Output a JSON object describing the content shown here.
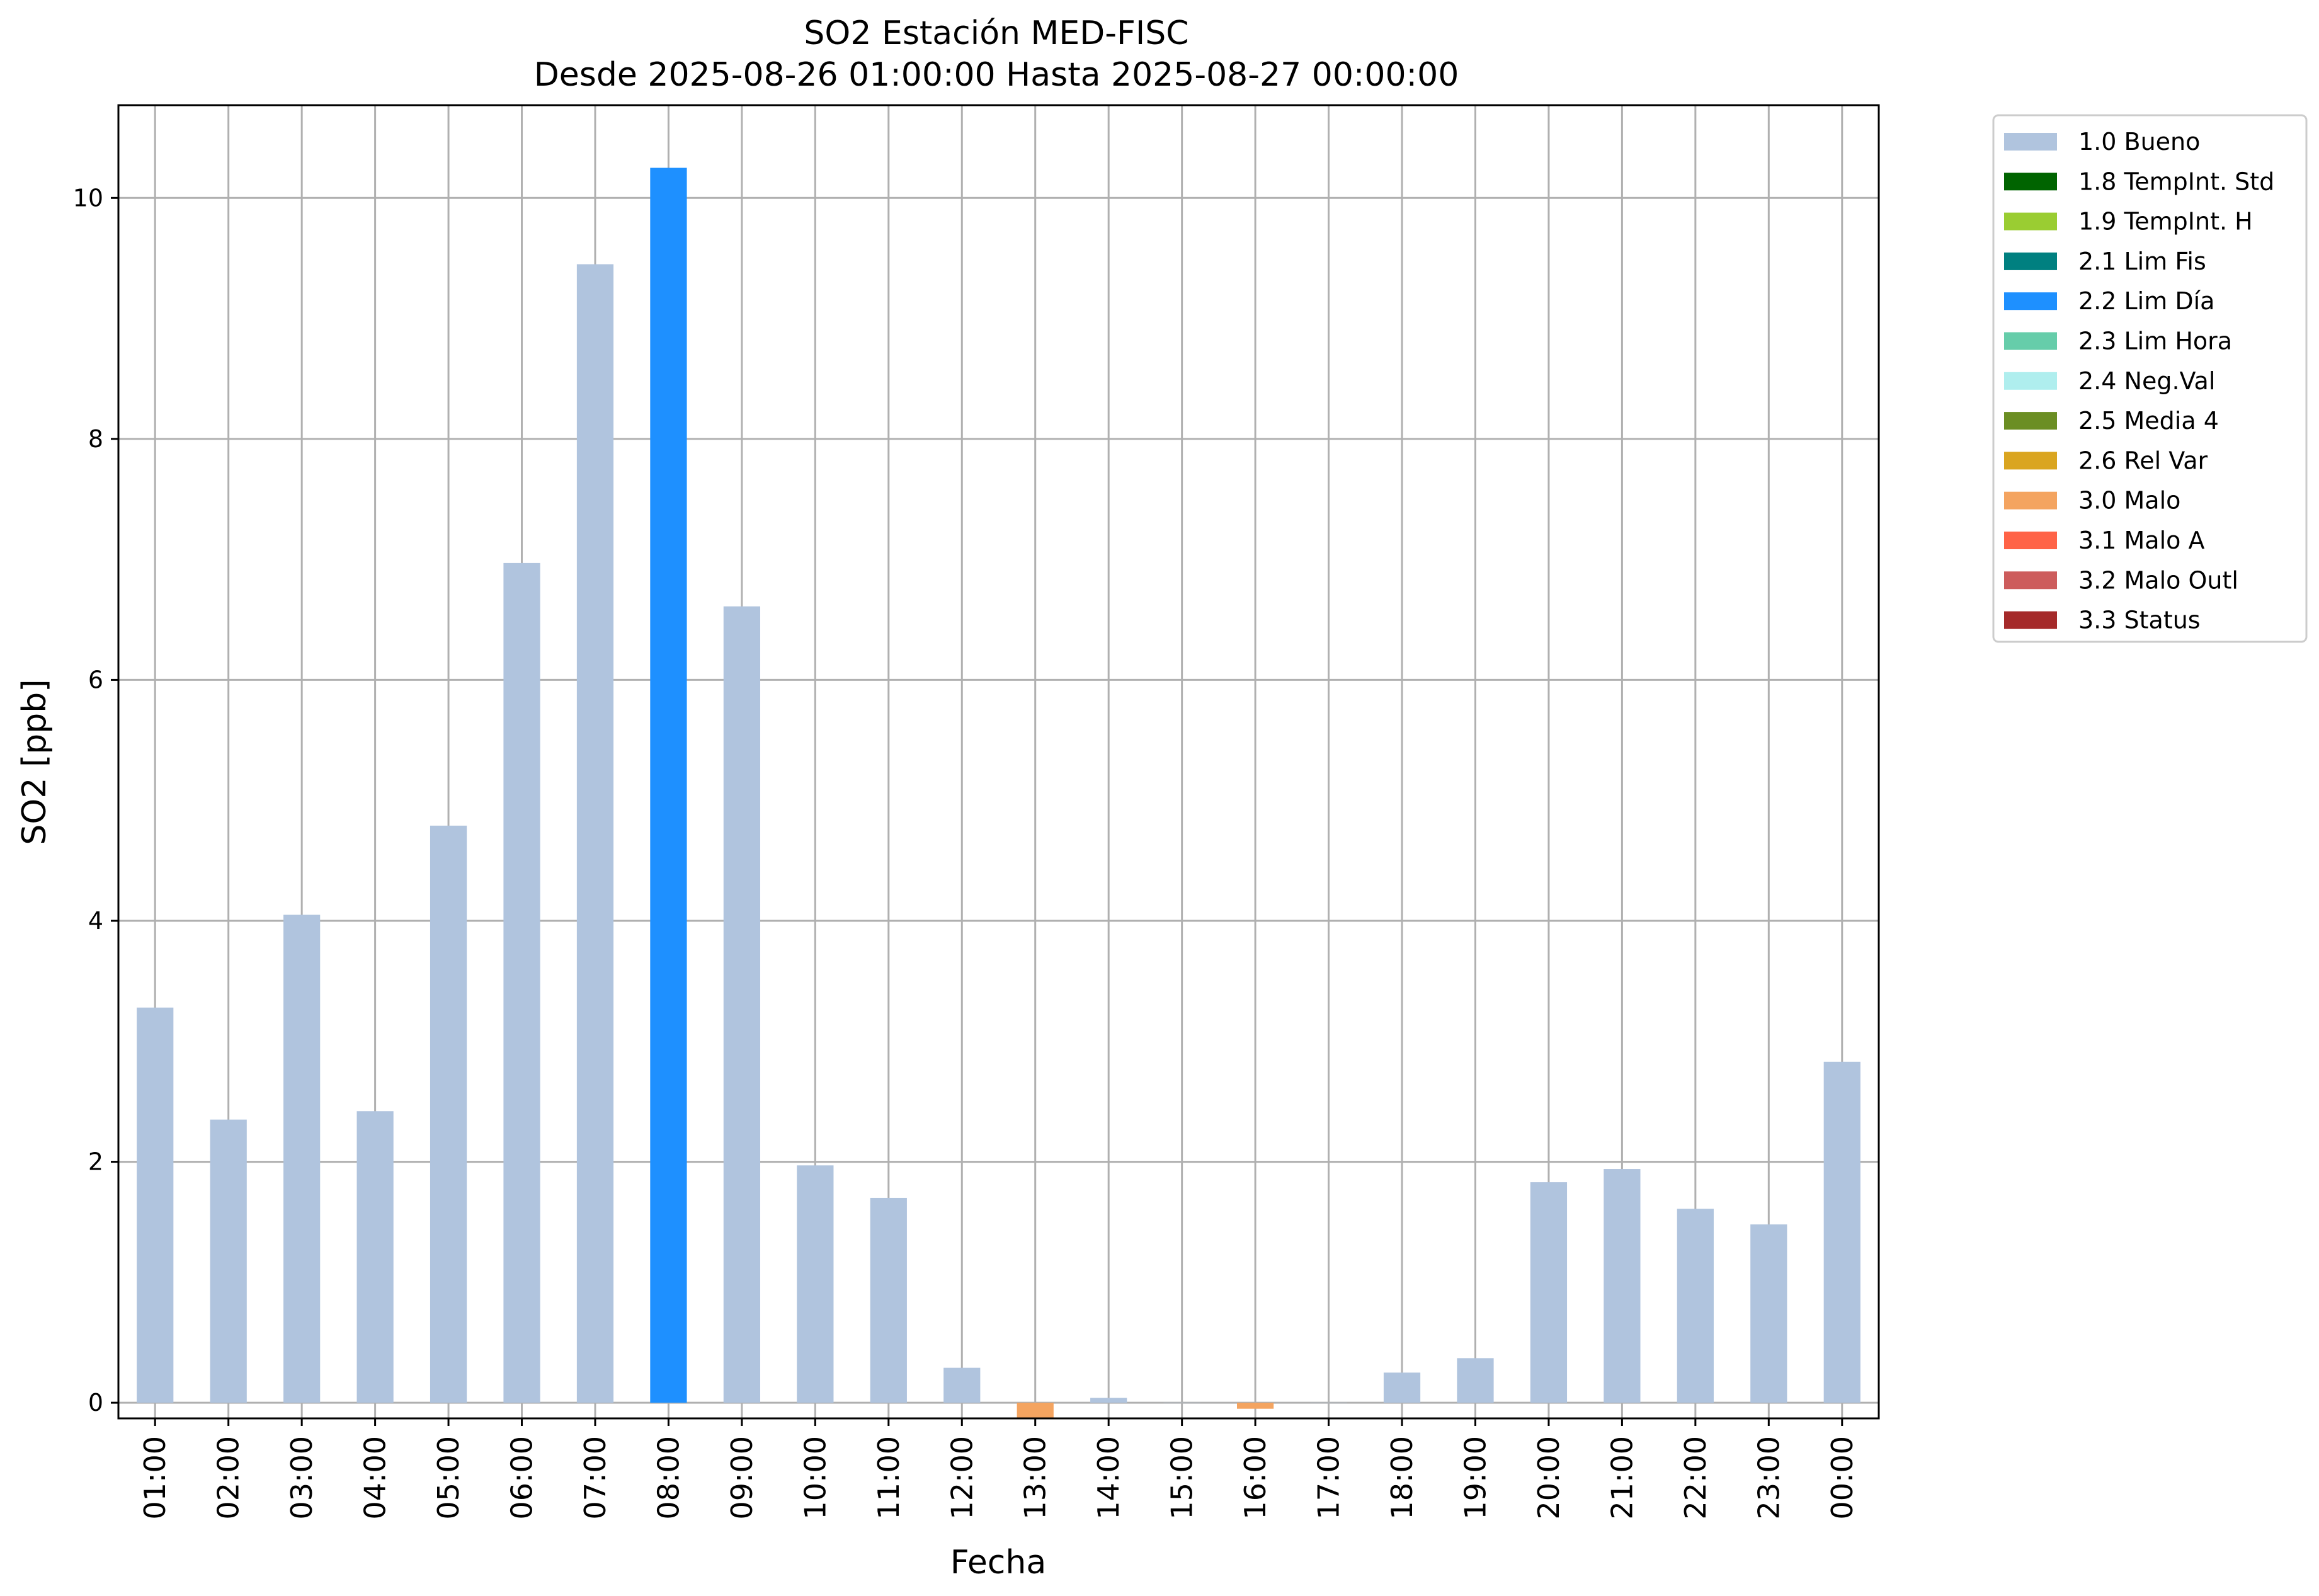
{
  "chart_data": {
    "type": "bar",
    "title_lines": [
      "SO2 Estación MED-FISC",
      "Desde 2025-08-26 01:00:00 Hasta 2025-08-27 00:00:00"
    ],
    "xlabel": "Fecha",
    "ylabel": "SO2 [ppb]",
    "ylim": [
      -0.13,
      10.77
    ],
    "yticks": [
      0,
      2,
      4,
      6,
      8,
      10
    ],
    "grid": true,
    "legend_position": "outside-top-right",
    "categories": [
      "01:00",
      "02:00",
      "03:00",
      "04:00",
      "05:00",
      "06:00",
      "07:00",
      "08:00",
      "09:00",
      "10:00",
      "11:00",
      "12:00",
      "13:00",
      "14:00",
      "15:00",
      "16:00",
      "17:00",
      "18:00",
      "19:00",
      "20:00",
      "21:00",
      "22:00",
      "23:00",
      "00:00"
    ],
    "values": [
      3.28,
      2.35,
      4.05,
      2.42,
      4.79,
      6.97,
      9.45,
      10.25,
      6.61,
      1.97,
      1.7,
      0.29,
      -0.13,
      0.04,
      0.0,
      -0.05,
      0.0,
      0.25,
      0.37,
      1.83,
      1.94,
      1.61,
      1.48,
      2.83
    ],
    "flags": [
      "1.0 Bueno",
      "1.0 Bueno",
      "1.0 Bueno",
      "1.0 Bueno",
      "1.0 Bueno",
      "1.0 Bueno",
      "1.0 Bueno",
      "2.2 Lim Día",
      "1.0 Bueno",
      "1.0 Bueno",
      "1.0 Bueno",
      "1.0 Bueno",
      "3.0 Malo",
      "1.0 Bueno",
      "1.0 Bueno",
      "3.0 Malo",
      "1.0 Bueno",
      "1.0 Bueno",
      "1.0 Bueno",
      "1.0 Bueno",
      "1.0 Bueno",
      "1.0 Bueno",
      "1.0 Bueno",
      "1.0 Bueno"
    ],
    "legend": [
      {
        "label": "1.0 Bueno",
        "color": "#b0c4de"
      },
      {
        "label": "1.8 TempInt. Std",
        "color": "#006400"
      },
      {
        "label": "1.9 TempInt. H",
        "color": "#9acd32"
      },
      {
        "label": "2.1 Lim Fis",
        "color": "#008080"
      },
      {
        "label": "2.2 Lim Día",
        "color": "#1e90ff"
      },
      {
        "label": "2.3 Lim Hora",
        "color": "#66cdaa"
      },
      {
        "label": "2.4 Neg.Val",
        "color": "#afeeee"
      },
      {
        "label": "2.5 Media 4",
        "color": "#6b8e23"
      },
      {
        "label": "2.6 Rel Var",
        "color": "#daa520"
      },
      {
        "label": "3.0 Malo",
        "color": "#f4a460"
      },
      {
        "label": "3.1 Malo A",
        "color": "#ff6347"
      },
      {
        "label": "3.2 Malo Outl",
        "color": "#cd5c5c"
      },
      {
        "label": "3.3 Status",
        "color": "#a52a2a"
      }
    ]
  }
}
